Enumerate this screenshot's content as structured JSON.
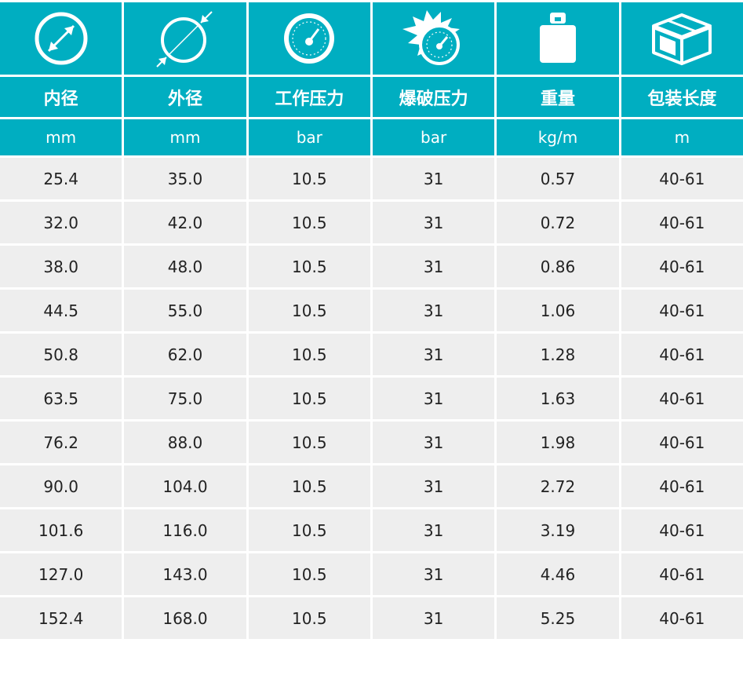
{
  "icons": [
    "diameter-icon",
    "outer-diameter-icon",
    "pressure-gauge-icon",
    "burst-gauge-icon",
    "weight-icon",
    "package-box-icon"
  ],
  "colors": {
    "header_bg": "#00aec1",
    "row_bg": "#eeeeee",
    "text": "#222222"
  },
  "columns": [
    {
      "title": "内径",
      "unit": "mm"
    },
    {
      "title": "外径",
      "unit": "mm"
    },
    {
      "title": "工作压力",
      "unit": "bar"
    },
    {
      "title": "爆破压力",
      "unit": "bar"
    },
    {
      "title": "重量",
      "unit": "kg/m"
    },
    {
      "title": "包装长度",
      "unit": "m"
    }
  ],
  "rows": [
    [
      "25.4",
      "35.0",
      "10.5",
      "31",
      "0.57",
      "40-61"
    ],
    [
      "32.0",
      "42.0",
      "10.5",
      "31",
      "0.72",
      "40-61"
    ],
    [
      "38.0",
      "48.0",
      "10.5",
      "31",
      "0.86",
      "40-61"
    ],
    [
      "44.5",
      "55.0",
      "10.5",
      "31",
      "1.06",
      "40-61"
    ],
    [
      "50.8",
      "62.0",
      "10.5",
      "31",
      "1.28",
      "40-61"
    ],
    [
      "63.5",
      "75.0",
      "10.5",
      "31",
      "1.63",
      "40-61"
    ],
    [
      "76.2",
      "88.0",
      "10.5",
      "31",
      "1.98",
      "40-61"
    ],
    [
      "90.0",
      "104.0",
      "10.5",
      "31",
      "2.72",
      "40-61"
    ],
    [
      "101.6",
      "116.0",
      "10.5",
      "31",
      "3.19",
      "40-61"
    ],
    [
      "127.0",
      "143.0",
      "10.5",
      "31",
      "4.46",
      "40-61"
    ],
    [
      "152.4",
      "168.0",
      "10.5",
      "31",
      "5.25",
      "40-61"
    ]
  ]
}
